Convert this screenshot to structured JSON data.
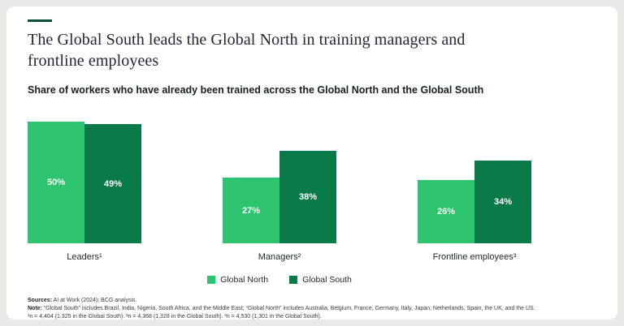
{
  "header": {
    "title": "The Global South leads the Global North in training managers and frontline employees",
    "subtitle": "Share of workers who have already been trained across the Global North and the Global South"
  },
  "chart_data": {
    "type": "bar",
    "categories": [
      "Leaders¹",
      "Managers²",
      "Frontline employees³"
    ],
    "series": [
      {
        "name": "Global North",
        "values": [
          50,
          27,
          26
        ],
        "color": "#2ec46f"
      },
      {
        "name": "Global South",
        "values": [
          49,
          38,
          34
        ],
        "color": "#0a7a4a"
      }
    ],
    "value_format": "percent",
    "ylim": [
      0,
      55
    ],
    "grid": false,
    "legend_position": "bottom",
    "title": "Share of workers who have already been trained across the Global North and the Global South",
    "xlabel": "",
    "ylabel": ""
  },
  "colors": {
    "accent_line": "#0e4f3a",
    "global_north": "#2ec46f",
    "global_south": "#0a7a4a",
    "card_background": "#ffffff",
    "page_background": "#e9e9e7"
  },
  "footer": {
    "sources_label": "Sources:",
    "sources_text": "AI at Work (2024); BCG analysis.",
    "note_label": "Note:",
    "note_text": "“Global South” includes Brazil, India, Nigeria, South Africa, and the Middle East; “Global North” includes Australia, Belgium, France, Germany, Italy, Japan, Netherlands, Spain, the UK, and the US.",
    "samples_text": "¹n = 4,404 (1,325 in the Global South). ²n = 4,368 (1,328 in the Global South). ³n = 4,530 (1,301 in the Global South)."
  }
}
